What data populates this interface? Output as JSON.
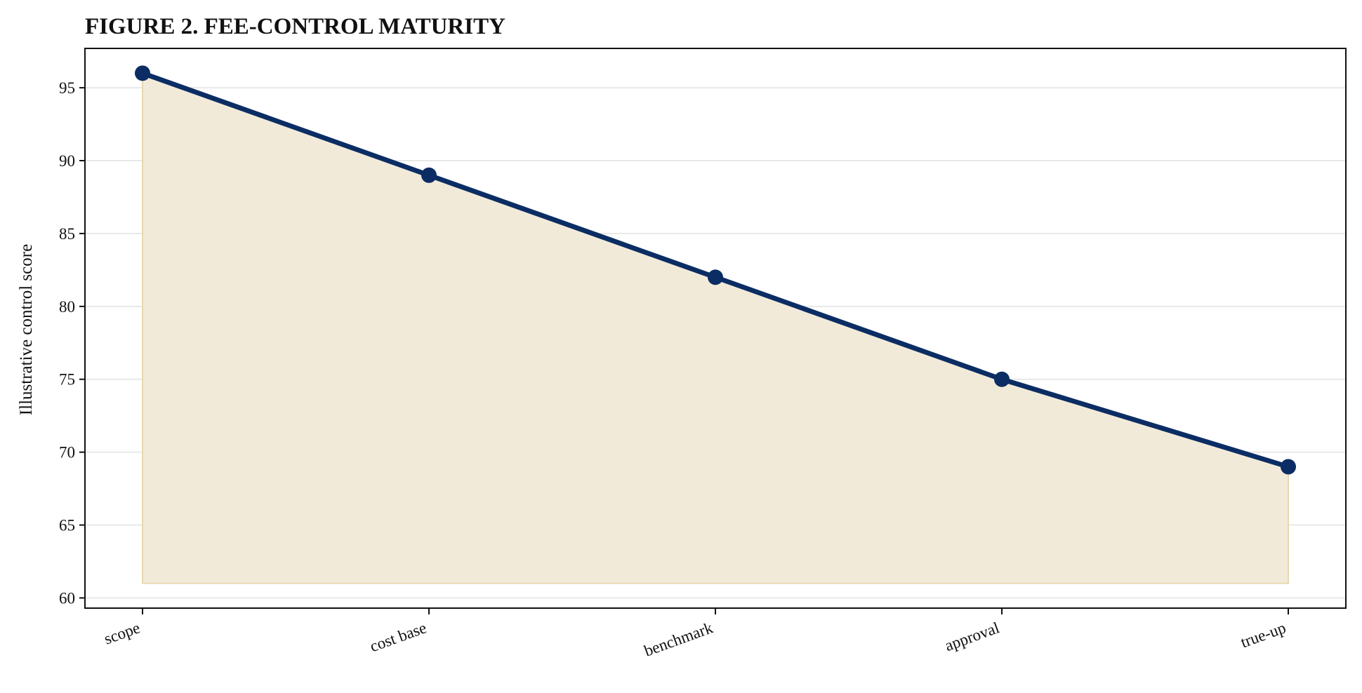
{
  "chart_data": {
    "type": "area",
    "title": "FIGURE 2. FEE-CONTROL MATURITY",
    "xlabel": "",
    "ylabel": "Illustrative control score",
    "categories": [
      "scope",
      "cost base",
      "benchmark",
      "approval",
      "true-up"
    ],
    "series": [
      {
        "values": [
          96,
          89,
          82,
          75,
          69
        ]
      }
    ],
    "fill_baseline": 61,
    "ylim": [
      59.3,
      97.7
    ],
    "yticks": [
      60,
      65,
      70,
      75,
      80,
      85,
      90,
      95
    ],
    "grid": "horizontal",
    "legend": "none",
    "colors": {
      "line": "#0b2d64",
      "marker": "#0b2d64",
      "fill": "#f2ead9",
      "fill_edge": "#e8d7b0",
      "grid": "#e8e8e8",
      "axis": "#111111"
    }
  }
}
